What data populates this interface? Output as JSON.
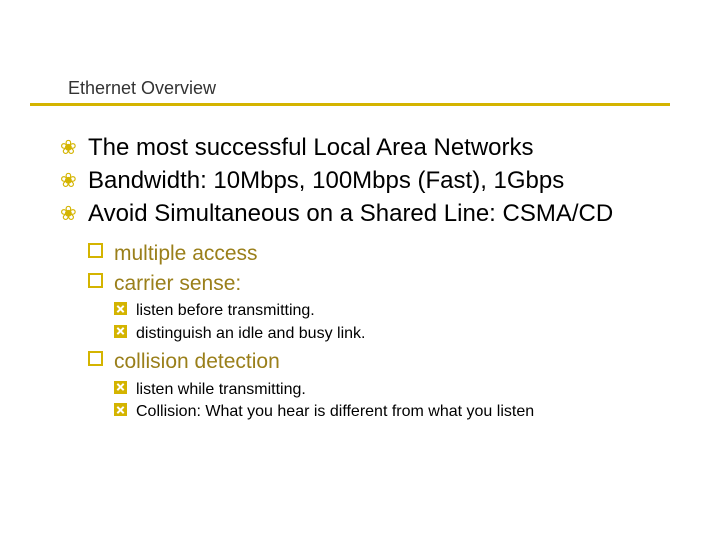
{
  "accent_color": "#d4b400",
  "title": "Ethernet Overview",
  "bullets": {
    "lvl1": [
      "The most successful Local Area Networks",
      "Bandwidth: 10Mbps, 100Mbps (Fast), 1Gbps",
      "Avoid Simultaneous on a Shared Line: CSMA/CD"
    ],
    "lvl2": [
      "multiple access",
      "carrier sense:",
      "collision detection"
    ],
    "lvl3_group1": [
      "listen before transmitting.",
      "distinguish an idle and busy link."
    ],
    "lvl3_group2": [
      "listen while transmitting.",
      "Collision: What you hear is different from what you listen"
    ]
  }
}
